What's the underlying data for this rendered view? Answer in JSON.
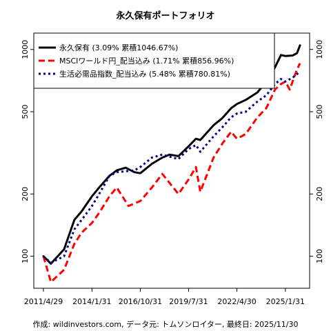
{
  "chart_data": {
    "type": "line",
    "title": "永久保有ポートフォリオ",
    "footer": "作成: wildinvestors.com, データ元: トムソンロイター, 最終日: 2025/11/30",
    "y_scale": "log",
    "ylim": [
      70,
      1200
    ],
    "y_ticks": [
      100,
      200,
      500,
      1000
    ],
    "y_tick_labels": [
      "100",
      "200",
      "500",
      "1000"
    ],
    "x_range": [
      "2011-04-29",
      "2025-11-30"
    ],
    "x_ticks": [
      "2011-04-29",
      "2014-01-31",
      "2016-10-31",
      "2019-07-31",
      "2022-04-30",
      "2025-01-31"
    ],
    "x_tick_labels": [
      "2011/4/29",
      "2014/1/31",
      "2016/10/31",
      "2019/7/31",
      "2022/4/30",
      "2025/1/31"
    ],
    "grid": false,
    "legend_position": "top-left",
    "series": [
      {
        "name": "永久保有",
        "legend": "永久保有 (3.09% 累積1046.67%)",
        "color": "#000000",
        "style": "solid",
        "points": [
          [
            "2011-04-29",
            100
          ],
          [
            "2011-09-30",
            92
          ],
          [
            "2012-06-30",
            108
          ],
          [
            "2013-01-31",
            150
          ],
          [
            "2013-06-30",
            165
          ],
          [
            "2014-01-31",
            195
          ],
          [
            "2014-06-30",
            215
          ],
          [
            "2015-01-31",
            245
          ],
          [
            "2015-06-30",
            260
          ],
          [
            "2015-12-31",
            268
          ],
          [
            "2016-06-30",
            255
          ],
          [
            "2016-10-31",
            252
          ],
          [
            "2017-06-30",
            280
          ],
          [
            "2018-01-31",
            300
          ],
          [
            "2018-06-30",
            310
          ],
          [
            "2018-12-31",
            305
          ],
          [
            "2019-07-31",
            340
          ],
          [
            "2019-12-31",
            370
          ],
          [
            "2020-03-31",
            365
          ],
          [
            "2020-12-31",
            430
          ],
          [
            "2021-06-30",
            465
          ],
          [
            "2021-12-31",
            520
          ],
          [
            "2022-04-30",
            545
          ],
          [
            "2022-10-31",
            570
          ],
          [
            "2023-06-30",
            620
          ],
          [
            "2023-12-31",
            700
          ],
          [
            "2024-06-30",
            820
          ],
          [
            "2024-10-31",
            940
          ],
          [
            "2025-01-31",
            930
          ],
          [
            "2025-06-30",
            935
          ],
          [
            "2025-09-30",
            960
          ],
          [
            "2025-11-30",
            1046.67
          ]
        ]
      },
      {
        "name": "MSCIワールド円_配当込み",
        "legend": "MSCIワールド円_配当込み (1.71% 累積856.96%)",
        "color": "#ff0000",
        "style": "dashed",
        "points": [
          [
            "2011-04-29",
            100
          ],
          [
            "2011-09-30",
            75
          ],
          [
            "2012-06-30",
            86
          ],
          [
            "2013-01-31",
            115
          ],
          [
            "2013-06-30",
            130
          ],
          [
            "2014-01-31",
            145
          ],
          [
            "2014-06-30",
            162
          ],
          [
            "2015-01-31",
            195
          ],
          [
            "2015-06-30",
            215
          ],
          [
            "2016-02-29",
            175
          ],
          [
            "2016-10-31",
            185
          ],
          [
            "2017-06-30",
            215
          ],
          [
            "2018-01-31",
            250
          ],
          [
            "2018-12-31",
            200
          ],
          [
            "2019-07-31",
            235
          ],
          [
            "2019-12-31",
            270
          ],
          [
            "2020-03-31",
            205
          ],
          [
            "2020-12-31",
            300
          ],
          [
            "2021-06-30",
            350
          ],
          [
            "2021-12-31",
            400
          ],
          [
            "2022-04-30",
            370
          ],
          [
            "2022-10-31",
            390
          ],
          [
            "2023-06-30",
            470
          ],
          [
            "2023-12-31",
            520
          ],
          [
            "2024-06-30",
            640
          ],
          [
            "2024-10-31",
            680
          ],
          [
            "2025-01-31",
            700
          ],
          [
            "2025-04-30",
            640
          ],
          [
            "2025-09-30",
            800
          ],
          [
            "2025-11-30",
            856.96
          ]
        ]
      },
      {
        "name": "生活必需品指数_配当込み",
        "legend": "生活必需品指数_配当込み (5.48% 累積780.81%)",
        "color": "#00008b",
        "style": "dotted",
        "points": [
          [
            "2011-04-29",
            100
          ],
          [
            "2011-09-30",
            93
          ],
          [
            "2012-06-30",
            100
          ],
          [
            "2013-01-31",
            135
          ],
          [
            "2013-06-30",
            150
          ],
          [
            "2014-01-31",
            175
          ],
          [
            "2014-06-30",
            200
          ],
          [
            "2015-01-31",
            245
          ],
          [
            "2015-06-30",
            255
          ],
          [
            "2016-06-30",
            260
          ],
          [
            "2016-10-31",
            270
          ],
          [
            "2017-06-30",
            300
          ],
          [
            "2018-01-31",
            310
          ],
          [
            "2018-12-31",
            295
          ],
          [
            "2019-07-31",
            330
          ],
          [
            "2019-12-31",
            345
          ],
          [
            "2020-03-31",
            320
          ],
          [
            "2020-12-31",
            380
          ],
          [
            "2021-06-30",
            420
          ],
          [
            "2021-12-31",
            470
          ],
          [
            "2022-04-30",
            490
          ],
          [
            "2022-10-31",
            500
          ],
          [
            "2023-06-30",
            560
          ],
          [
            "2023-12-31",
            600
          ],
          [
            "2024-06-30",
            680
          ],
          [
            "2024-10-31",
            720
          ],
          [
            "2025-01-31",
            700
          ],
          [
            "2025-06-30",
            730
          ],
          [
            "2025-11-30",
            780.81
          ]
        ]
      }
    ]
  }
}
